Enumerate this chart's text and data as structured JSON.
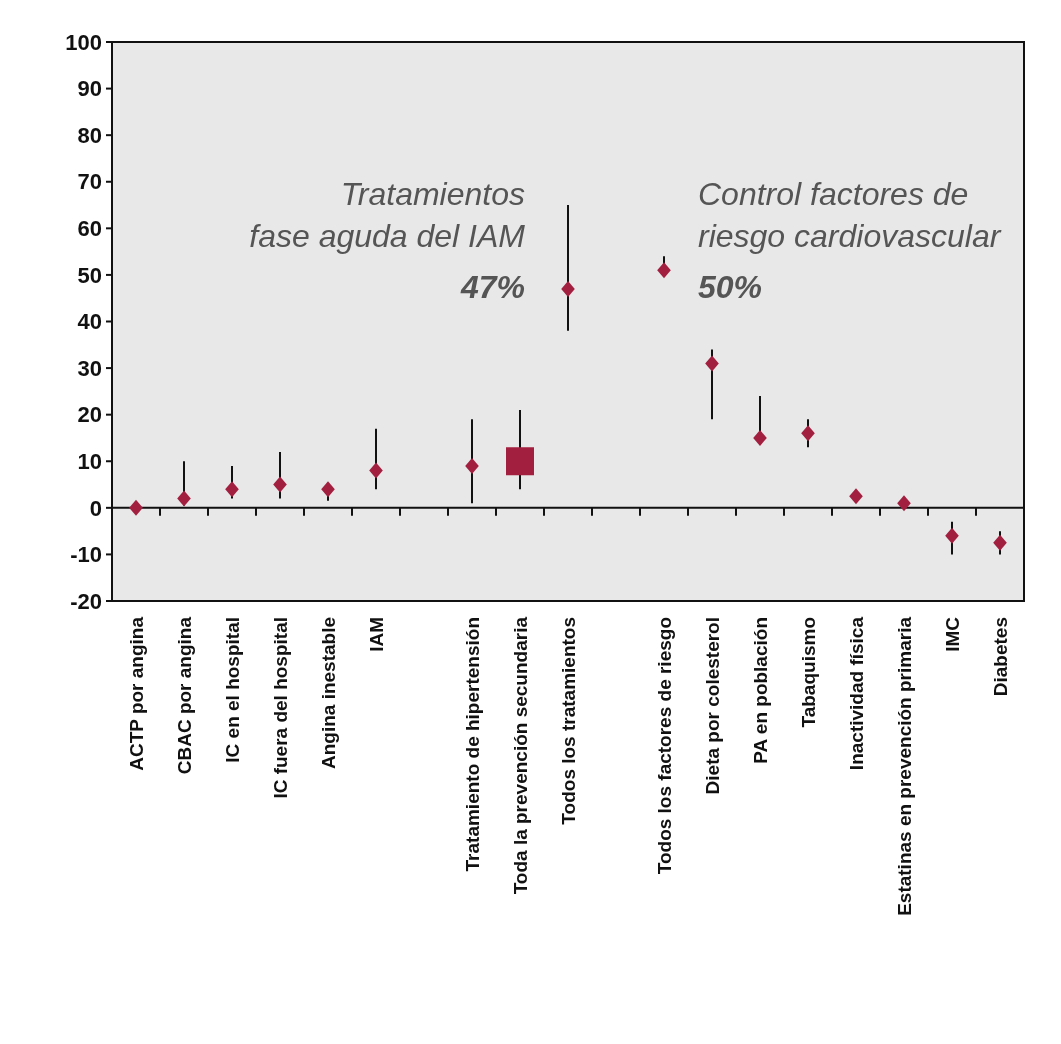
{
  "chart_data": {
    "type": "scatter",
    "categories": [
      "ACTP por angina",
      "CBAC por angina",
      "IC en el hospital",
      "IC fuera del hospital",
      "Angina inestable",
      "IAM",
      null,
      "Tratamiento de hipertensión",
      "Toda la prevención secundaria",
      "Todos los tratamientos",
      null,
      "Todos los factores de riesgo",
      "Dieta por colesterol",
      "PA en población",
      "Tabaquismo",
      "Inactividad física",
      "Estatinas en prevención primaria",
      "IMC",
      "Diabetes"
    ],
    "series": [
      {
        "color": "#a31f3f",
        "marker": "diamond",
        "values": [
          0,
          2,
          4,
          5,
          4,
          8,
          null,
          9,
          null,
          47,
          null,
          51,
          31,
          15,
          16,
          2.5,
          1,
          -6,
          -7.5
        ],
        "errors": [
          null,
          [
            0.5,
            10
          ],
          [
            2,
            9
          ],
          [
            2,
            12
          ],
          [
            1.5,
            5
          ],
          [
            4,
            17
          ],
          null,
          [
            1,
            19
          ],
          null,
          [
            38,
            65
          ],
          null,
          [
            50,
            54
          ],
          [
            19,
            34
          ],
          [
            14,
            24
          ],
          [
            13,
            19
          ],
          null,
          null,
          [
            -10,
            -3
          ],
          [
            -10,
            -5
          ]
        ]
      },
      {
        "color": "#a31f3f",
        "marker": "square",
        "values": [
          null,
          null,
          null,
          null,
          null,
          null,
          null,
          null,
          10,
          null,
          null,
          null,
          null,
          null,
          null,
          null,
          null,
          null,
          null
        ],
        "errors": [
          null,
          null,
          null,
          null,
          null,
          null,
          null,
          null,
          [
            4,
            21
          ],
          null,
          null,
          null,
          null,
          null,
          null,
          null,
          null,
          null,
          null
        ]
      }
    ],
    "ylim": [
      -20,
      100
    ],
    "yticks": [
      -20,
      -10,
      0,
      10,
      20,
      30,
      40,
      50,
      60,
      70,
      80,
      90,
      100
    ],
    "annotations": [
      "Tratamientos fase aguda del IAM",
      "47%",
      "Control factores de riesgo cardiovascular",
      "50%"
    ]
  }
}
